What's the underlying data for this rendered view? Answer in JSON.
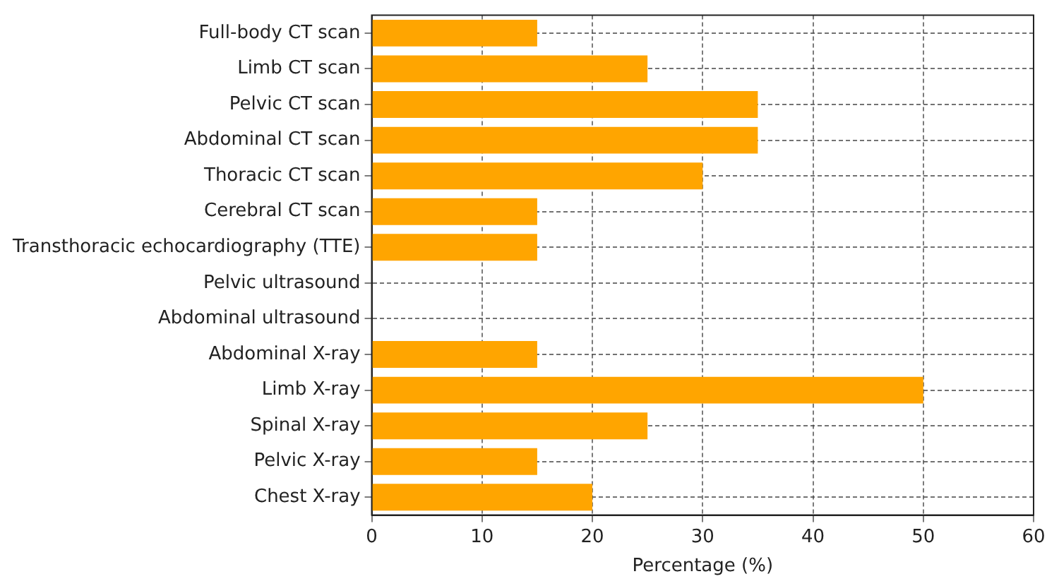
{
  "chart_data": {
    "type": "bar",
    "orientation": "horizontal",
    "xlabel": "Percentage (%)",
    "categories": [
      "Full-body CT scan",
      "Limb CT scan",
      "Pelvic CT scan",
      "Abdominal CT scan",
      "Thoracic CT scan",
      "Cerebral CT scan",
      "Transthoracic echocardiography (TTE)",
      "Pelvic ultrasound",
      "Abdominal ultrasound",
      "Abdominal X-ray",
      "Limb X-ray",
      "Spinal X-ray",
      "Pelvic X-ray",
      "Chest X-ray"
    ],
    "values": [
      15,
      25,
      35,
      35,
      30,
      15,
      15,
      0,
      0,
      15,
      50,
      25,
      15,
      20
    ],
    "color": "#ffa500",
    "xlim": [
      0,
      60
    ],
    "xticks": [
      0,
      10,
      20,
      30,
      40,
      50,
      60
    ],
    "grid": true
  }
}
